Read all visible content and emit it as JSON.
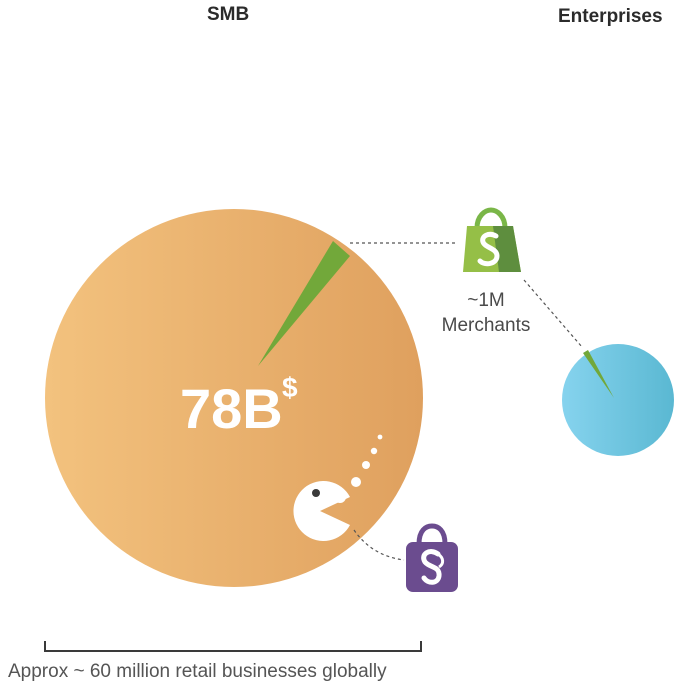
{
  "headings": {
    "smb": "SMB",
    "enterprises": "Enterprises"
  },
  "smb_circle": {
    "value_label": "78B",
    "currency_symbol": "$",
    "color_start": "#f3c27e",
    "color_end": "#dfa05e"
  },
  "enterprise_circle": {
    "color_start": "#86d3ee",
    "color_end": "#5ab8d2"
  },
  "merchants": {
    "count": "~1M",
    "label": "Merchants"
  },
  "footer": {
    "text": "Approx ~ 60 million retail businesses globally"
  },
  "icons": {
    "shopify": "shopify-bag-icon",
    "purple_bag": "purple-shopping-bag-icon",
    "pacman": "pacman-icon"
  },
  "colors": {
    "shopify_green": "#7ab648",
    "slice_green": "#72a83a",
    "purple": "#6b4c8f"
  }
}
